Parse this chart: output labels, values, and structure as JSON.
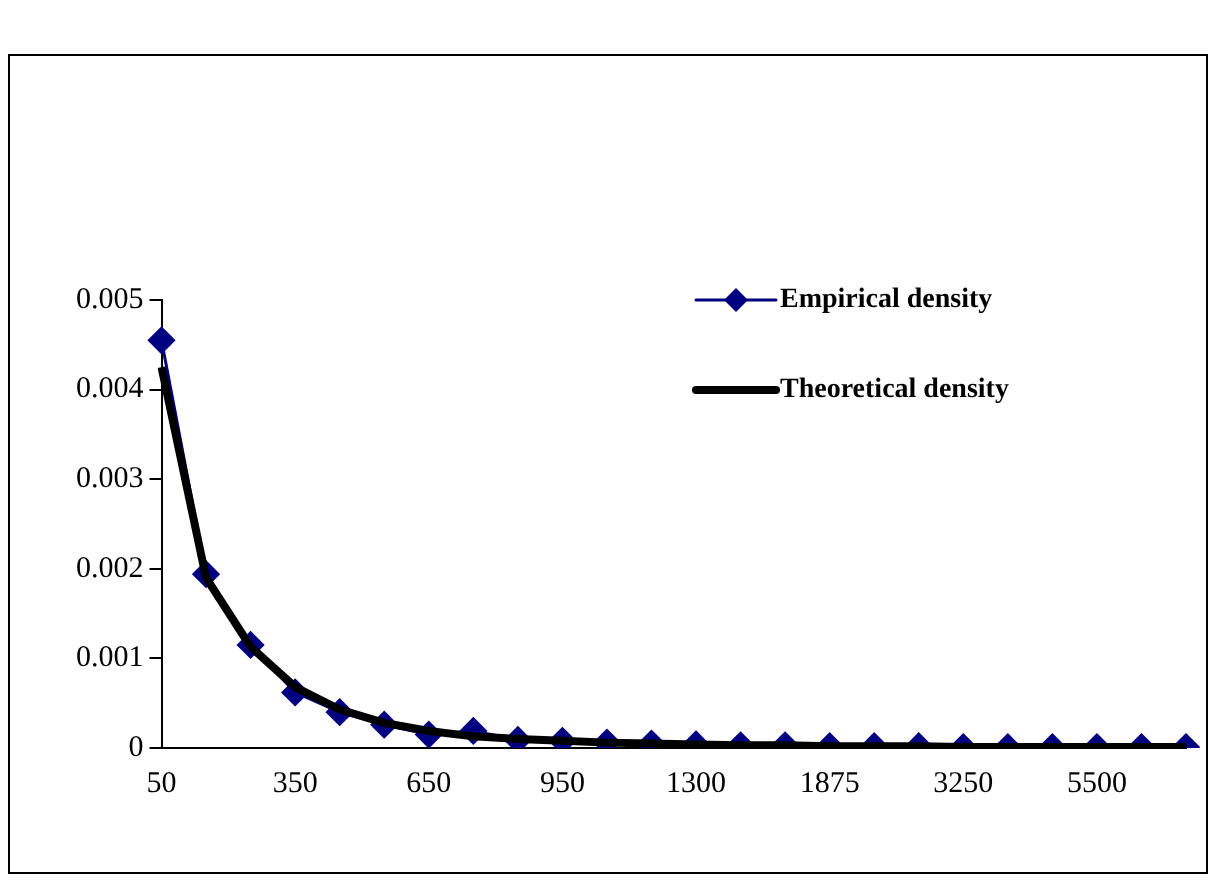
{
  "chart_data": {
    "type": "line",
    "categories": [
      "50",
      null,
      null,
      "350",
      null,
      null,
      "650",
      null,
      null,
      "950",
      null,
      null,
      "1300",
      null,
      null,
      "1875",
      null,
      null,
      "3250",
      null,
      null,
      "5500",
      null,
      null
    ],
    "series": [
      {
        "name": "Empirical density",
        "color": "#000080",
        "marker": "diamond",
        "values": [
          0.00455,
          0.00194,
          0.00115,
          0.00062,
          0.0004,
          0.00026,
          0.00015,
          0.00019,
          9e-05,
          8e-05,
          6e-05,
          5e-05,
          4e-05,
          3e-05,
          3e-05,
          2e-05,
          2e-05,
          2e-05,
          1e-05,
          1e-05,
          1e-05,
          1e-05,
          1e-05,
          1e-05
        ]
      },
      {
        "name": "Theoretical density",
        "color": "#000000",
        "marker": "none",
        "values": [
          0.00425,
          0.0019,
          0.00113,
          0.00068,
          0.00043,
          0.00028,
          0.00019,
          0.00013,
          0.0001,
          8e-05,
          6e-05,
          5e-05,
          4e-05,
          3e-05,
          3e-05,
          2e-05,
          2e-05,
          2e-05,
          1e-05,
          1e-05,
          1e-05,
          1e-05,
          1e-05,
          1e-05
        ]
      }
    ],
    "ylim": [
      0,
      0.005
    ],
    "yticks": [
      0,
      0.001,
      0.002,
      0.003,
      0.004,
      0.005
    ],
    "grid": false,
    "legend": "top right"
  }
}
